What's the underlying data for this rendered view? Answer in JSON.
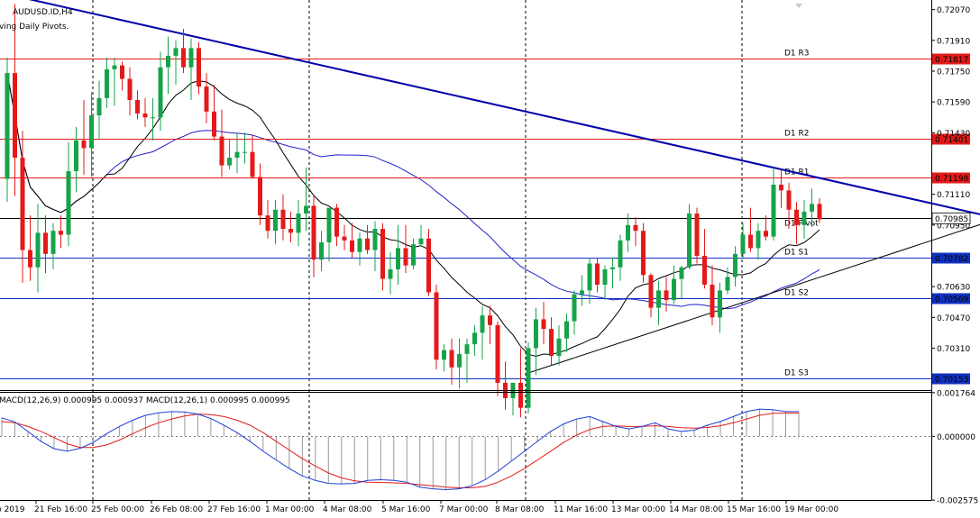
{
  "window": {
    "symbol_title": "AUDUSD.ID,H4",
    "indicator_title": "ving Daily Pivots."
  },
  "colors": {
    "bull": "#16a34a",
    "bear": "#e41a1a",
    "trend_line": "#0000aa",
    "support_line": "#000000",
    "ma_slow": "#2222cc",
    "ma_fast": "#000000",
    "resistance": "#e41a1a",
    "support": "#1030c0",
    "macd": "#1f3fd8",
    "signal": "#e41a1a",
    "hist": "#9a9a9a"
  },
  "chart_data": [
    {
      "type": "candlestick",
      "title": "AUDUSD.ID,H4",
      "ylim": [
        0.70092,
        0.7212
      ],
      "y_ticks": [
        "0.72070",
        "0.71910",
        "0.71750",
        "0.71590",
        "0.71430",
        "0.71110",
        "0.70950",
        "0.70630",
        "0.70470",
        "0.70310"
      ],
      "x_ticks": [
        "b 2019",
        "21 Feb 16:00",
        "25 Feb 00:00",
        "26 Feb 08:00",
        "27 Feb 16:00",
        "1 Mar 00:00",
        "4 Mar 08:00",
        "5 Mar 16:00",
        "7 Mar 00:00",
        "8 Mar 08:00",
        "11 Mar 16:00",
        "13 Mar 00:00",
        "14 Mar 08:00",
        "15 Mar 16:00",
        "19 Mar 00:00"
      ],
      "current_price": "0.70985",
      "pivots": [
        {
          "label": "D1 R3",
          "value": 0.71817,
          "price_tag": "0.71817",
          "kind": "resistance"
        },
        {
          "label": "D1 R2",
          "value": 0.71401,
          "price_tag": "0.71401",
          "kind": "resistance"
        },
        {
          "label": "D1 R1",
          "value": 0.71198,
          "price_tag": "0.71198",
          "kind": "resistance"
        },
        {
          "label": "D1 Pivot",
          "value": 0.70985,
          "price_tag": "",
          "kind": "pivot"
        },
        {
          "label": "D1 S1",
          "value": 0.70782,
          "price_tag": "0.70782",
          "kind": "support"
        },
        {
          "label": "D1 S2",
          "value": 0.70569,
          "price_tag": "0.70569",
          "kind": "support"
        },
        {
          "label": "D1 S3",
          "value": 0.70153,
          "price_tag": "0.70153",
          "kind": "support"
        }
      ],
      "trendlines": [
        {
          "name": "falling resistance",
          "from": [
            0,
            0.7215
          ],
          "to": [
            129,
            0.70984
          ]
        },
        {
          "name": "rising support",
          "from": [
            68,
            0.70181
          ],
          "to": [
            129,
            0.70984
          ]
        }
      ],
      "candles": [
        [
          0.7119,
          0.7182,
          0.7107,
          0.7174
        ],
        [
          0.7174,
          0.721,
          0.711,
          0.713
        ],
        [
          0.713,
          0.7144,
          0.7065,
          0.7082
        ],
        [
          0.7082,
          0.71,
          0.7066,
          0.7073
        ],
        [
          0.7073,
          0.7106,
          0.706,
          0.7091
        ],
        [
          0.7091,
          0.71,
          0.707,
          0.708
        ],
        [
          0.708,
          0.7096,
          0.7072,
          0.7092
        ],
        [
          0.7092,
          0.71,
          0.7083,
          0.709
        ],
        [
          0.709,
          0.7138,
          0.7084,
          0.7123
        ],
        [
          0.7123,
          0.7146,
          0.7112,
          0.7139
        ],
        [
          0.7139,
          0.716,
          0.7121,
          0.7135
        ],
        [
          0.7135,
          0.7164,
          0.712,
          0.7152
        ],
        [
          0.7152,
          0.717,
          0.714,
          0.7161
        ],
        [
          0.7161,
          0.7182,
          0.7156,
          0.7176
        ],
        [
          0.7176,
          0.7182,
          0.7157,
          0.7178
        ],
        [
          0.7178,
          0.718,
          0.7165,
          0.7171
        ],
        [
          0.7171,
          0.7177,
          0.7152,
          0.716
        ],
        [
          0.716,
          0.7165,
          0.715,
          0.7153
        ],
        [
          0.7153,
          0.7161,
          0.7146,
          0.7151
        ],
        [
          0.7151,
          0.7161,
          0.7139,
          0.7151
        ],
        [
          0.7151,
          0.7185,
          0.7144,
          0.7177
        ],
        [
          0.7177,
          0.7193,
          0.7163,
          0.7183
        ],
        [
          0.7183,
          0.7191,
          0.7168,
          0.7187
        ],
        [
          0.7187,
          0.7197,
          0.7174,
          0.7177
        ],
        [
          0.7177,
          0.7192,
          0.716,
          0.7187
        ],
        [
          0.7187,
          0.719,
          0.7163,
          0.7167
        ],
        [
          0.7167,
          0.7174,
          0.7148,
          0.7154
        ],
        [
          0.7154,
          0.7168,
          0.7139,
          0.7141
        ],
        [
          0.7141,
          0.7155,
          0.712,
          0.7126
        ],
        [
          0.7126,
          0.714,
          0.7124,
          0.713
        ],
        [
          0.713,
          0.7143,
          0.7122,
          0.7133
        ],
        [
          0.7133,
          0.7143,
          0.7127,
          0.7133
        ],
        [
          0.7133,
          0.7142,
          0.7119,
          0.712
        ],
        [
          0.712,
          0.7127,
          0.7095,
          0.71
        ],
        [
          0.71,
          0.7108,
          0.7088,
          0.7092
        ],
        [
          0.7092,
          0.7108,
          0.7085,
          0.7103
        ],
        [
          0.7103,
          0.7111,
          0.7087,
          0.7093
        ],
        [
          0.7093,
          0.7102,
          0.7086,
          0.7091
        ],
        [
          0.7091,
          0.7108,
          0.7084,
          0.7101
        ],
        [
          0.7101,
          0.7125,
          0.7092,
          0.7105
        ],
        [
          0.7105,
          0.711,
          0.7068,
          0.7077
        ],
        [
          0.7077,
          0.7092,
          0.7071,
          0.7086
        ],
        [
          0.7086,
          0.7103,
          0.7076,
          0.7104
        ],
        [
          0.7104,
          0.7106,
          0.7084,
          0.7089
        ],
        [
          0.7089,
          0.7095,
          0.7082,
          0.7087
        ],
        [
          0.7087,
          0.7096,
          0.7078,
          0.7081
        ],
        [
          0.7081,
          0.7091,
          0.7074,
          0.7088
        ],
        [
          0.7088,
          0.7095,
          0.708,
          0.7082
        ],
        [
          0.7082,
          0.7097,
          0.7071,
          0.7093
        ],
        [
          0.7093,
          0.7096,
          0.7061,
          0.7067
        ],
        [
          0.7067,
          0.7081,
          0.7059,
          0.7072
        ],
        [
          0.7072,
          0.7095,
          0.7064,
          0.7083
        ],
        [
          0.7083,
          0.7095,
          0.707,
          0.7074
        ],
        [
          0.7074,
          0.7088,
          0.7072,
          0.7085
        ],
        [
          0.7085,
          0.7095,
          0.7084,
          0.7088
        ],
        [
          0.7088,
          0.7093,
          0.7058,
          0.706
        ],
        [
          0.706,
          0.7064,
          0.702,
          0.7025
        ],
        [
          0.7025,
          0.7033,
          0.7019,
          0.703
        ],
        [
          0.703,
          0.7036,
          0.7012,
          0.7021
        ],
        [
          0.7021,
          0.7036,
          0.701,
          0.7028
        ],
        [
          0.7028,
          0.7036,
          0.7013,
          0.7033
        ],
        [
          0.7033,
          0.7043,
          0.7027,
          0.7039
        ],
        [
          0.7039,
          0.7053,
          0.7025,
          0.7048
        ],
        [
          0.7048,
          0.7053,
          0.7033,
          0.7043
        ],
        [
          0.7043,
          0.7045,
          0.7006,
          0.7013
        ],
        [
          0.7013,
          0.7024,
          0.6999,
          0.7005
        ],
        [
          0.7005,
          0.7013,
          0.6996,
          0.7013
        ],
        [
          0.7013,
          0.7031,
          0.6995,
          0.7
        ],
        [
          0.7,
          0.7034,
          0.6997,
          0.7031
        ],
        [
          0.7031,
          0.7052,
          0.7017,
          0.7046
        ],
        [
          0.7046,
          0.7055,
          0.7033,
          0.7041
        ],
        [
          0.7041,
          0.7047,
          0.7022,
          0.7027
        ],
        [
          0.7027,
          0.7043,
          0.7022,
          0.7036
        ],
        [
          0.7036,
          0.7049,
          0.7029,
          0.7045
        ],
        [
          0.7045,
          0.7061,
          0.7038,
          0.7059
        ],
        [
          0.7059,
          0.7069,
          0.7053,
          0.7061
        ],
        [
          0.7061,
          0.7078,
          0.7054,
          0.7075
        ],
        [
          0.7075,
          0.7078,
          0.706,
          0.7064
        ],
        [
          0.7064,
          0.7074,
          0.7056,
          0.7072
        ],
        [
          0.7072,
          0.7078,
          0.7062,
          0.7073
        ],
        [
          0.7073,
          0.709,
          0.7066,
          0.7087
        ],
        [
          0.7087,
          0.7101,
          0.7081,
          0.7095
        ],
        [
          0.7095,
          0.7099,
          0.7084,
          0.7092
        ],
        [
          0.7092,
          0.7096,
          0.7065,
          0.7069
        ],
        [
          0.7069,
          0.707,
          0.7047,
          0.7052
        ],
        [
          0.7052,
          0.7066,
          0.7043,
          0.7061
        ],
        [
          0.7061,
          0.7068,
          0.705,
          0.7056
        ],
        [
          0.7056,
          0.7074,
          0.7054,
          0.7067
        ],
        [
          0.7067,
          0.7074,
          0.7057,
          0.7073
        ],
        [
          0.7073,
          0.7106,
          0.7072,
          0.7101
        ],
        [
          0.7101,
          0.7104,
          0.7075,
          0.7079
        ],
        [
          0.7079,
          0.7093,
          0.7062,
          0.7064
        ],
        [
          0.7064,
          0.7074,
          0.7043,
          0.7047
        ],
        [
          0.7047,
          0.7065,
          0.7039,
          0.7061
        ],
        [
          0.7061,
          0.7073,
          0.7059,
          0.7068
        ],
        [
          0.7068,
          0.7084,
          0.7063,
          0.708
        ],
        [
          0.708,
          0.7096,
          0.7078,
          0.709
        ],
        [
          0.709,
          0.7104,
          0.7081,
          0.7083
        ],
        [
          0.7083,
          0.7096,
          0.7077,
          0.7092
        ],
        [
          0.7092,
          0.71,
          0.7087,
          0.7089
        ],
        [
          0.7089,
          0.7125,
          0.7087,
          0.7116
        ],
        [
          0.7116,
          0.7124,
          0.7104,
          0.7113
        ],
        [
          0.7113,
          0.7117,
          0.7093,
          0.7103
        ],
        [
          0.7103,
          0.7107,
          0.7085,
          0.7095
        ],
        [
          0.7095,
          0.7108,
          0.7088,
          0.7102
        ],
        [
          0.7102,
          0.7114,
          0.7094,
          0.7106
        ],
        [
          0.7106,
          0.7109,
          0.7096,
          0.7098
        ]
      ]
    },
    {
      "type": "line",
      "title": "MACD(12,26,9) 0.000995 0.000937 MACD(12,26,1) 0.000995 0.000995",
      "ylim": [
        -0.00257,
        0.00176
      ],
      "y_ticks": [
        "0.001764",
        "0.000000",
        "-0.002575"
      ],
      "series": [
        {
          "name": "macd",
          "values": [
            0.00075,
            0.00058,
            0.0002,
            -0.0002,
            -0.0005,
            -0.0006,
            -0.00048,
            -0.00025,
            0.0001,
            0.0004,
            0.00065,
            0.00085,
            0.00095,
            0.001,
            0.00098,
            0.0009,
            0.00072,
            0.00045,
            0.00015,
            -0.0002,
            -0.0006,
            -0.00095,
            -0.0013,
            -0.0016,
            -0.00178,
            -0.0019,
            -0.00192,
            -0.0019,
            -0.00178,
            -0.00175,
            -0.00178,
            -0.00185,
            -0.00205,
            -0.00212,
            -0.00215,
            -0.00212,
            -0.002,
            -0.00175,
            -0.0014,
            -0.001,
            -0.0006,
            -0.0002,
            0.0002,
            0.0005,
            0.0007,
            0.0008,
            0.0006,
            0.0004,
            0.0003,
            0.0004,
            0.00055,
            0.0003,
            0.0002,
            0.00025,
            0.00045,
            0.0006,
            0.0008,
            0.001,
            0.0011,
            0.00108,
            0.001,
            0.001
          ]
        },
        {
          "name": "signal",
          "values": [
            0.0006,
            0.00055,
            0.0004,
            0.0002,
            -5e-05,
            -0.0003,
            -0.00045,
            -0.00045,
            -0.00035,
            -0.00015,
            0.0001,
            0.00035,
            0.00055,
            0.0007,
            0.00082,
            0.0009,
            0.00088,
            0.0008,
            0.00065,
            0.00045,
            0.00015,
            -0.0002,
            -0.00055,
            -0.0009,
            -0.0012,
            -0.00148,
            -0.00168,
            -0.0018,
            -0.00185,
            -0.00186,
            -0.00188,
            -0.0019,
            -0.00195,
            -0.002,
            -0.00205,
            -0.00208,
            -0.00208,
            -0.00202,
            -0.00185,
            -0.0016,
            -0.0013,
            -0.00095,
            -0.0006,
            -0.00025,
            5e-05,
            0.00028,
            0.0004,
            0.00042,
            0.0004,
            0.0004,
            0.00043,
            0.0004,
            0.00035,
            0.00033,
            0.00036,
            0.00043,
            0.00055,
            0.0007,
            0.00085,
            0.00093,
            0.00094,
            0.00094
          ]
        }
      ]
    }
  ]
}
